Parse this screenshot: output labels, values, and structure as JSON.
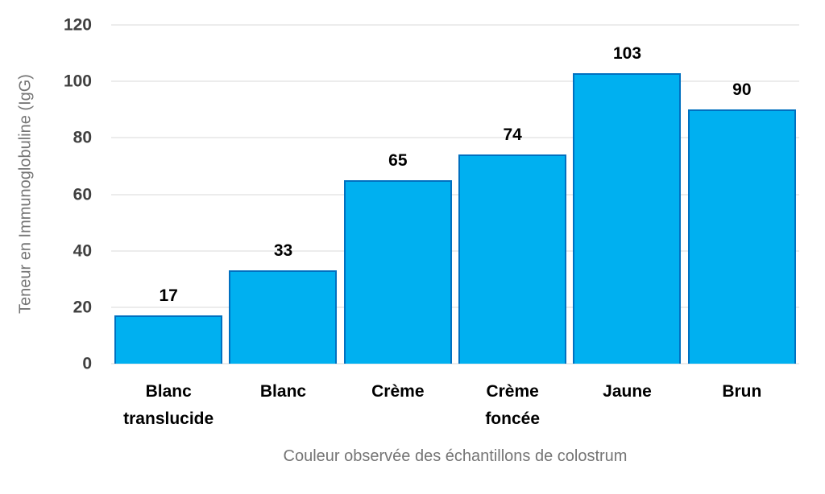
{
  "chart_data": {
    "type": "bar",
    "categories": [
      "Blanc\ntranslucide",
      "Blanc",
      "Crème",
      "Crème\nfoncée",
      "Jaune",
      "Brun"
    ],
    "values": [
      17,
      33,
      65,
      74,
      103,
      90
    ],
    "title": "",
    "xlabel": "Couleur observée des échantillons de colostrum",
    "ylabel": "Teneur en Immunoglobuline (IgG)",
    "ylim": [
      0,
      120
    ],
    "yticks": [
      0,
      20,
      40,
      60,
      80,
      100,
      120
    ],
    "grid": true,
    "legend": false,
    "value_labels_shown": true,
    "colors": {
      "bar_fill": "#00b0f0",
      "bar_border": "#0070c0",
      "gridline": "#d9d9d9",
      "tick_label": "#404040",
      "axis_title": "#757575",
      "value_label": "#000000",
      "background": "#ffffff"
    }
  }
}
